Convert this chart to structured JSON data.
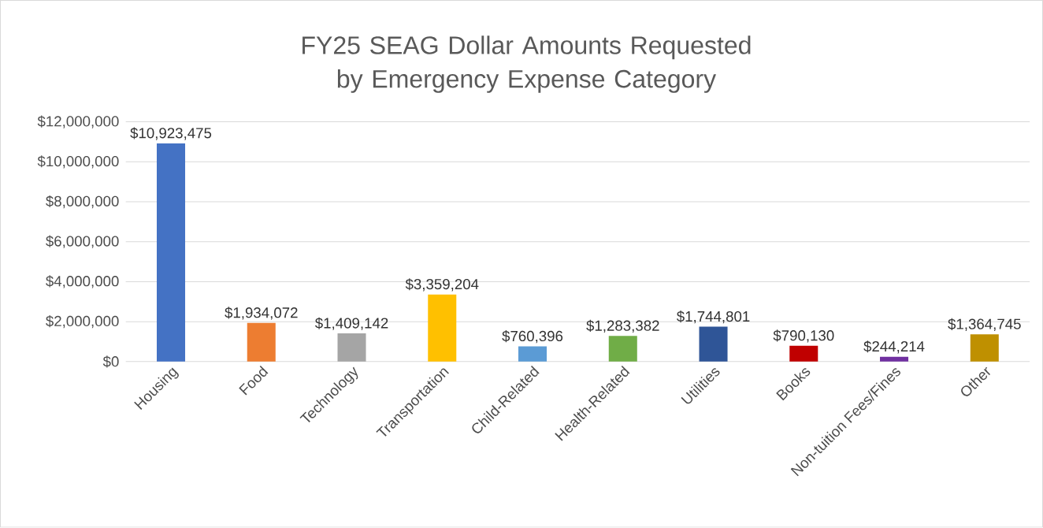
{
  "chart_data": {
    "type": "bar",
    "title": "FY25 SEAG Dollar Amounts Requested by Emergency Expense Category",
    "categories": [
      "Housing",
      "Food",
      "Technology",
      "Transportation",
      "Child-Related",
      "Health-Related",
      "Utilities",
      "Books",
      "Non-tuition Fees/Fines",
      "Other"
    ],
    "values": [
      10923475,
      1934072,
      1409142,
      3359204,
      760396,
      1283382,
      1744801,
      790130,
      244214,
      1364745
    ],
    "value_labels": [
      "$10,923,475",
      "$1,934,072",
      "$1,409,142",
      "$3,359,204",
      "$760,396",
      "$1,283,382",
      "$1,744,801",
      "$790,130",
      "$244,214",
      "$1,364,745"
    ],
    "colors": [
      "#4472c4",
      "#ed7d31",
      "#a5a5a5",
      "#ffc000",
      "#5b9bd5",
      "#70ad47",
      "#2f5597",
      "#c00000",
      "#7030a0",
      "#bf9000"
    ],
    "ylim": [
      0,
      12000000
    ],
    "yticks": [
      {
        "value": 0,
        "label": "$0"
      },
      {
        "value": 2000000,
        "label": "$2,000,000"
      },
      {
        "value": 4000000,
        "label": "$4,000,000"
      },
      {
        "value": 6000000,
        "label": "$6,000,000"
      },
      {
        "value": 8000000,
        "label": "$8,000,000"
      },
      {
        "value": 10000000,
        "label": "$10,000,000"
      },
      {
        "value": 12000000,
        "label": "$12,000,000"
      }
    ],
    "grid": "y"
  }
}
